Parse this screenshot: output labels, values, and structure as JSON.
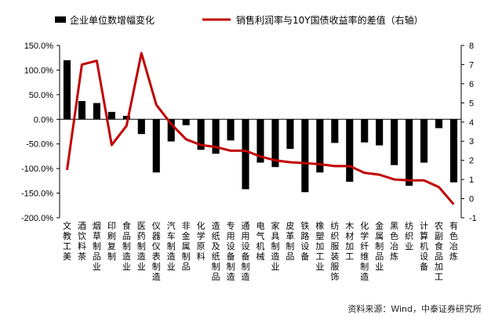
{
  "chart_data": {
    "type": "bar",
    "title": "",
    "xlabel": "",
    "ylabel": "",
    "categories": [
      "文教工美",
      "酒饮料茶",
      "烟草制品业",
      "印刷复制",
      "食品制造业",
      "医药制造业",
      "仪器仪表制造",
      "汽车制造业",
      "非金属制品",
      "化学原料",
      "造纸及纸制品",
      "专用设备制造",
      "通用设备制造",
      "电气机械",
      "家具制造业",
      "皮革制品",
      "铁路设备",
      "橡塑加工业",
      "纺织服装服饰",
      "木材加工",
      "化学纤维制造",
      "金属制品业",
      "黑色冶炼",
      "纺织业",
      "计算机设备",
      "农副食品加工",
      "有色冶炼"
    ],
    "series": [
      {
        "name": "企业单位数增幅变化",
        "axis": "left",
        "type": "bar",
        "color": "#000000",
        "values": [
          120,
          37,
          33,
          15,
          7,
          -30,
          -108,
          -45,
          -12,
          -62,
          -70,
          -43,
          -142,
          -88,
          -97,
          -60,
          -148,
          -108,
          -48,
          -127,
          -47,
          -53,
          -93,
          -135,
          -88,
          -18,
          -128
        ]
      },
      {
        "name": "销售利润率与10Y国债收益率的差值（右轴）",
        "axis": "right",
        "type": "line",
        "color": "#c00000",
        "values": [
          1.5,
          7.0,
          7.2,
          2.8,
          3.8,
          7.6,
          4.9,
          3.9,
          3.1,
          2.8,
          2.7,
          2.5,
          2.5,
          2.2,
          2.0,
          1.9,
          1.85,
          1.8,
          1.7,
          1.7,
          1.35,
          1.25,
          1.0,
          0.95,
          0.95,
          0.6,
          -0.3
        ]
      }
    ],
    "y_left": {
      "min": -200,
      "max": 150,
      "step": 50,
      "ticks": [
        "150.0%",
        "100.0%",
        "50.0%",
        "0.0%",
        "-50.0%",
        "-100.0%",
        "-150.0%",
        "-200.0%"
      ]
    },
    "y_right": {
      "min": -1,
      "max": 8,
      "step": 1,
      "ticks": [
        "8",
        "7",
        "6",
        "5",
        "4",
        "3",
        "2",
        "1",
        "0",
        "-1"
      ]
    },
    "legend_placement": "top",
    "grid": false
  },
  "source": "资料来源：Wind，中泰证券研究所"
}
